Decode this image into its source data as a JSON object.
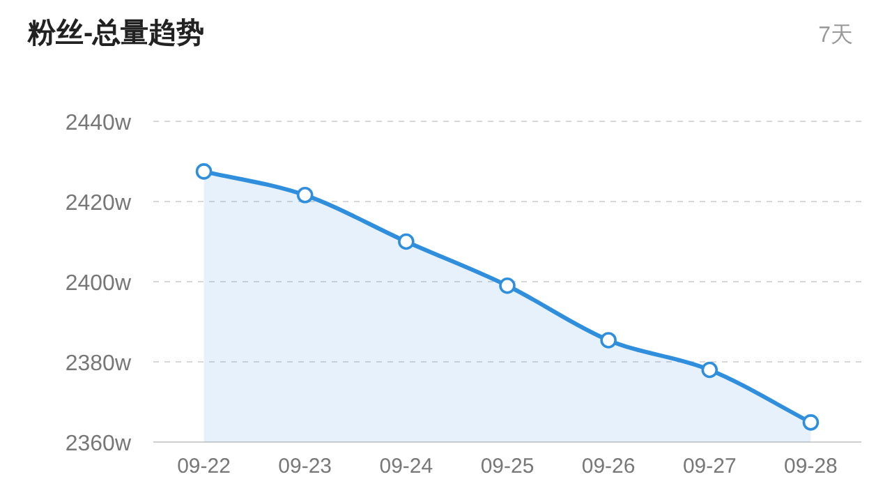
{
  "chart_data": {
    "type": "area",
    "title": "粉丝-总量趋势",
    "annotations": [
      "7天"
    ],
    "categories": [
      "09-22",
      "09-23",
      "09-24",
      "09-25",
      "09-26",
      "09-27",
      "09-28"
    ],
    "series": [
      {
        "color": "#2f8fdd",
        "values": [
          2427.5,
          2421.6,
          2410,
          2399,
          2385.4,
          2378,
          2364.9
        ]
      }
    ],
    "ylim": [
      2360,
      2440
    ],
    "yticks": [
      {
        "value": 2360,
        "label": "2360w"
      },
      {
        "value": 2380,
        "label": "2380w"
      },
      {
        "value": 2400,
        "label": "2400w"
      },
      {
        "value": 2420,
        "label": "2420w"
      },
      {
        "value": 2440,
        "label": "2440w"
      }
    ],
    "grid": "y",
    "marker": "circle",
    "line_style": "solid"
  }
}
